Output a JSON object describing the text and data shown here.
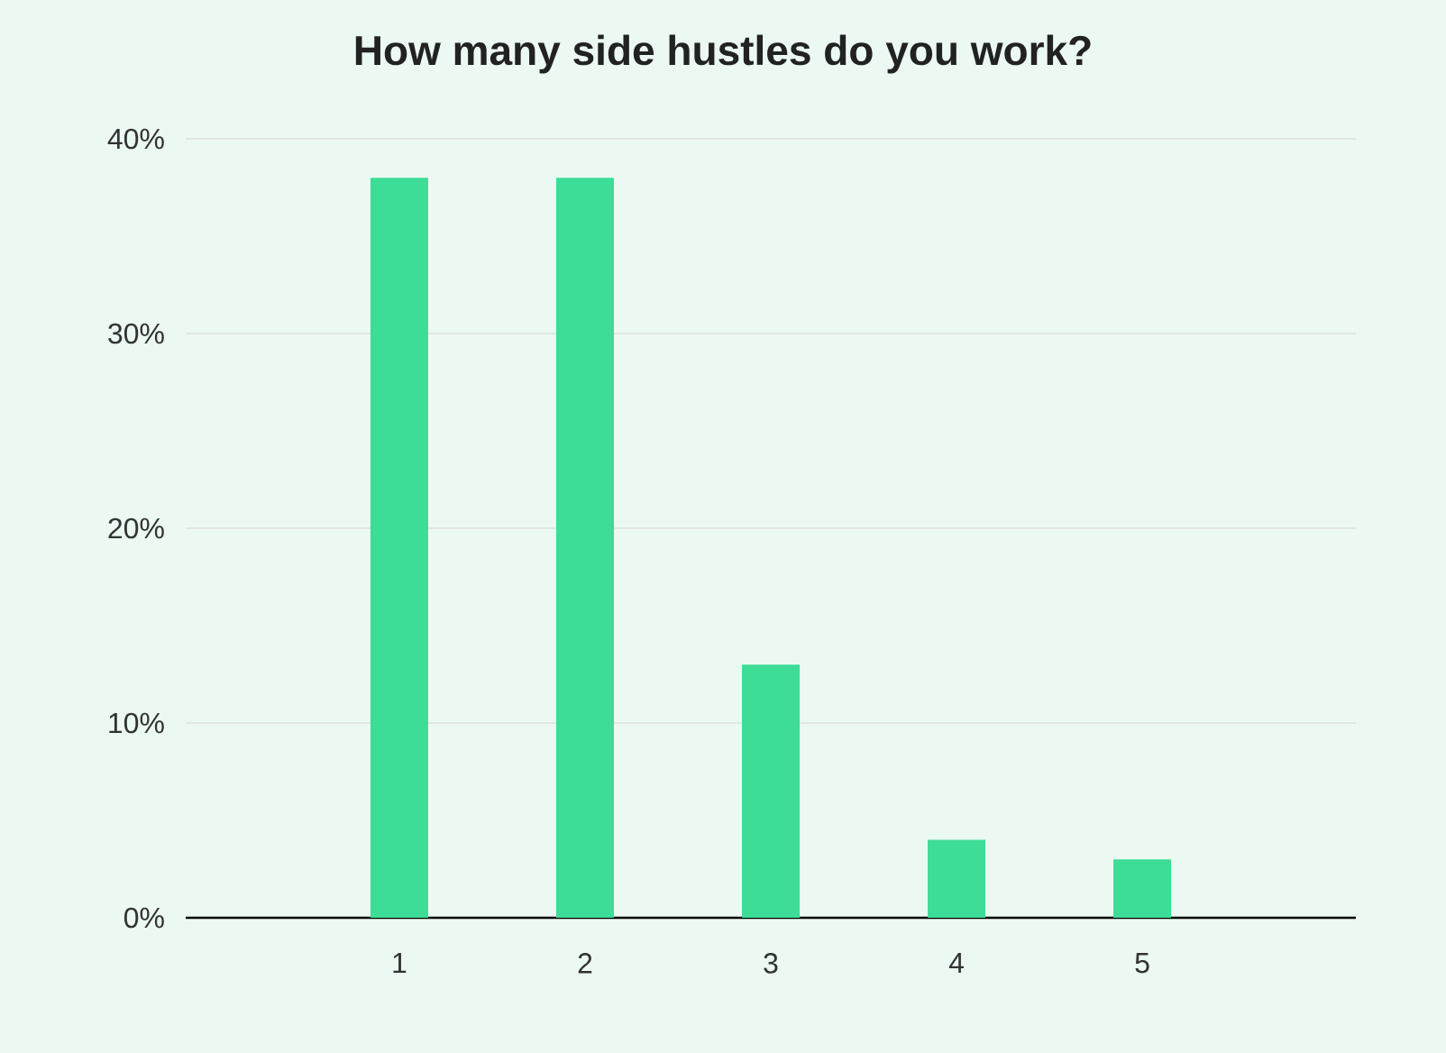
{
  "chart_data": {
    "type": "bar",
    "title": "How many side hustles do you work?",
    "categories": [
      "1",
      "2",
      "3",
      "4",
      "5"
    ],
    "values": [
      38,
      38,
      13,
      4,
      3
    ],
    "color": "#3ddc97",
    "ylim": [
      0,
      40
    ],
    "yticks": [
      {
        "value": 0,
        "label": "0%"
      },
      {
        "value": 10,
        "label": "10%"
      },
      {
        "value": 20,
        "label": "20%"
      },
      {
        "value": 30,
        "label": "30%"
      },
      {
        "value": 40,
        "label": "40%"
      }
    ],
    "grid": "y"
  }
}
